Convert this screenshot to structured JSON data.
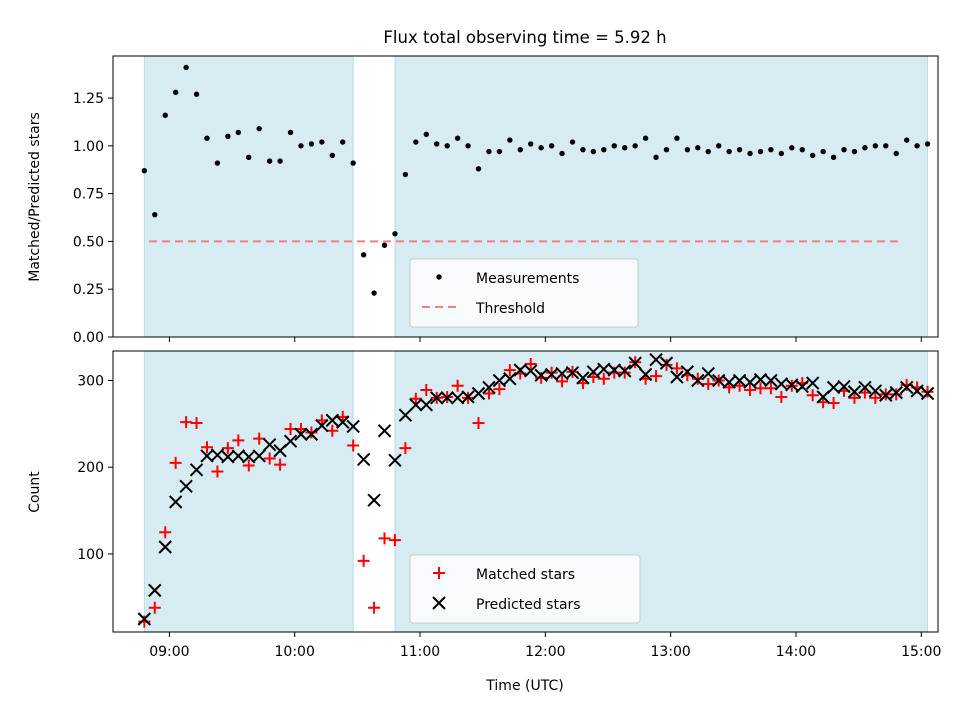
{
  "title": "Flux total observing time = 5.92 h",
  "chart_data": [
    {
      "type": "scatter",
      "ylabel": "Matched/Predicted stars",
      "ylim": [
        0,
        1.47
      ],
      "yticks": [
        0.0,
        0.25,
        0.5,
        0.75,
        1.0,
        1.25
      ],
      "ytick_labels": [
        "0.00",
        "0.25",
        "0.50",
        "0.75",
        "1.00",
        "1.25"
      ],
      "threshold": 0.5,
      "shaded_intervals": [
        [
          "08:48",
          "10:28"
        ],
        [
          "10:48",
          "15:03"
        ]
      ],
      "legend": [
        "Measurements",
        "Threshold"
      ],
      "series": [
        {
          "name": "Measurements",
          "times": [
            "08:48",
            "08:53",
            "08:58",
            "09:03",
            "09:08",
            "09:13",
            "09:18",
            "09:23",
            "09:28",
            "09:33",
            "09:38",
            "09:43",
            "09:48",
            "09:53",
            "09:58",
            "10:03",
            "10:08",
            "10:13",
            "10:18",
            "10:23",
            "10:28",
            "10:33",
            "10:38",
            "10:43",
            "10:48",
            "10:53",
            "10:58",
            "11:03",
            "11:08",
            "11:13",
            "11:18",
            "11:23",
            "11:28",
            "11:33",
            "11:38",
            "11:43",
            "11:48",
            "11:53",
            "11:58",
            "12:03",
            "12:08",
            "12:13",
            "12:18",
            "12:23",
            "12:28",
            "12:33",
            "12:38",
            "12:43",
            "12:48",
            "12:53",
            "12:58",
            "13:03",
            "13:08",
            "13:13",
            "13:18",
            "13:23",
            "13:28",
            "13:33",
            "13:38",
            "13:43",
            "13:48",
            "13:53",
            "13:58",
            "14:03",
            "14:08",
            "14:13",
            "14:18",
            "14:23",
            "14:28",
            "14:33",
            "14:38",
            "14:43",
            "14:48",
            "14:53",
            "14:58",
            "15:03"
          ],
          "values": [
            0.87,
            0.64,
            1.16,
            1.28,
            1.41,
            1.27,
            1.04,
            0.91,
            1.05,
            1.07,
            0.94,
            1.09,
            0.92,
            0.92,
            1.07,
            1.0,
            1.01,
            1.02,
            0.95,
            1.02,
            0.91,
            0.43,
            0.23,
            0.48,
            0.54,
            0.85,
            1.02,
            1.06,
            1.01,
            1.0,
            1.04,
            1.0,
            0.88,
            0.97,
            0.97,
            1.03,
            0.98,
            1.01,
            0.99,
            1.0,
            0.96,
            1.02,
            0.98,
            0.97,
            0.98,
            1.0,
            0.99,
            1.0,
            1.04,
            0.94,
            0.98,
            1.04,
            0.98,
            0.99,
            0.97,
            1.0,
            0.97,
            0.98,
            0.96,
            0.97,
            0.98,
            0.96,
            0.99,
            0.98,
            0.95,
            0.97,
            0.94,
            0.98,
            0.97,
            0.99,
            1.0,
            1.0,
            0.96,
            1.03,
            1.0,
            1.01
          ]
        }
      ]
    },
    {
      "type": "scatter",
      "xlabel": "Time (UTC)",
      "ylabel": "Count",
      "ylim": [
        10,
        334
      ],
      "yticks": [
        100,
        200,
        300
      ],
      "ytick_labels": [
        "100",
        "200",
        "300"
      ],
      "xlim": [
        "08:33",
        "15:08"
      ],
      "xticks": [
        "09:00",
        "10:00",
        "11:00",
        "12:00",
        "13:00",
        "14:00",
        "15:00"
      ],
      "shaded_intervals": [
        [
          "08:48",
          "10:28"
        ],
        [
          "10:48",
          "15:03"
        ]
      ],
      "legend": [
        "Matched stars",
        "Predicted stars"
      ],
      "series": [
        {
          "name": "Matched stars",
          "times": [
            "08:48",
            "08:53",
            "08:58",
            "09:03",
            "09:08",
            "09:13",
            "09:18",
            "09:23",
            "09:28",
            "09:33",
            "09:38",
            "09:43",
            "09:48",
            "09:53",
            "09:58",
            "10:03",
            "10:08",
            "10:13",
            "10:18",
            "10:23",
            "10:28",
            "10:33",
            "10:38",
            "10:43",
            "10:48",
            "10:53",
            "10:58",
            "11:03",
            "11:08",
            "11:13",
            "11:18",
            "11:23",
            "11:28",
            "11:33",
            "11:38",
            "11:43",
            "11:48",
            "11:53",
            "11:58",
            "12:03",
            "12:08",
            "12:13",
            "12:18",
            "12:23",
            "12:28",
            "12:33",
            "12:38",
            "12:43",
            "12:48",
            "12:53",
            "12:58",
            "13:03",
            "13:08",
            "13:13",
            "13:18",
            "13:23",
            "13:28",
            "13:33",
            "13:38",
            "13:43",
            "13:48",
            "13:53",
            "13:58",
            "14:03",
            "14:08",
            "14:13",
            "14:18",
            "14:23",
            "14:28",
            "14:33",
            "14:38",
            "14:43",
            "14:48",
            "14:53",
            "14:58",
            "15:03"
          ],
          "values": [
            22,
            38,
            125,
            205,
            252,
            251,
            223,
            195,
            222,
            231,
            202,
            233,
            210,
            203,
            244,
            244,
            240,
            254,
            242,
            258,
            225,
            92,
            38,
            118,
            116,
            222,
            279,
            289,
            280,
            281,
            294,
            280,
            251,
            285,
            290,
            312,
            308,
            319,
            303,
            309,
            299,
            310,
            297,
            304,
            302,
            309,
            309,
            321,
            302,
            305,
            318,
            314,
            306,
            302,
            296,
            300,
            292,
            294,
            289,
            291,
            291,
            281,
            294,
            297,
            283,
            275,
            274,
            288,
            280,
            286,
            280,
            284,
            284,
            295,
            292,
            287
          ]
        },
        {
          "name": "Predicted stars",
          "times": [
            "08:48",
            "08:53",
            "08:58",
            "09:03",
            "09:08",
            "09:13",
            "09:18",
            "09:23",
            "09:28",
            "09:33",
            "09:38",
            "09:43",
            "09:48",
            "09:53",
            "09:58",
            "10:03",
            "10:08",
            "10:13",
            "10:18",
            "10:23",
            "10:28",
            "10:33",
            "10:38",
            "10:43",
            "10:48",
            "10:53",
            "10:58",
            "11:03",
            "11:08",
            "11:13",
            "11:18",
            "11:23",
            "11:28",
            "11:33",
            "11:38",
            "11:43",
            "11:48",
            "11:53",
            "11:58",
            "12:03",
            "12:08",
            "12:13",
            "12:18",
            "12:23",
            "12:28",
            "12:33",
            "12:38",
            "12:43",
            "12:48",
            "12:53",
            "12:58",
            "13:03",
            "13:08",
            "13:13",
            "13:18",
            "13:23",
            "13:28",
            "13:33",
            "13:38",
            "13:43",
            "13:48",
            "13:53",
            "13:58",
            "14:03",
            "14:08",
            "14:13",
            "14:18",
            "14:23",
            "14:28",
            "14:33",
            "14:38",
            "14:43",
            "14:48",
            "14:53",
            "14:58",
            "15:03"
          ],
          "values": [
            25,
            58,
            108,
            160,
            178,
            197,
            213,
            214,
            212,
            213,
            212,
            213,
            226,
            219,
            230,
            238,
            238,
            248,
            254,
            252,
            247,
            209,
            162,
            242,
            208,
            260,
            272,
            272,
            280,
            280,
            280,
            281,
            285,
            292,
            300,
            302,
            312,
            311,
            306,
            307,
            308,
            309,
            303,
            310,
            313,
            312,
            311,
            320,
            307,
            324,
            320,
            304,
            310,
            300,
            308,
            300,
            298,
            300,
            298,
            301,
            300,
            296,
            295,
            293,
            297,
            281,
            292,
            293,
            287,
            292,
            288,
            283,
            286,
            292,
            288,
            285
          ]
        }
      ]
    }
  ]
}
